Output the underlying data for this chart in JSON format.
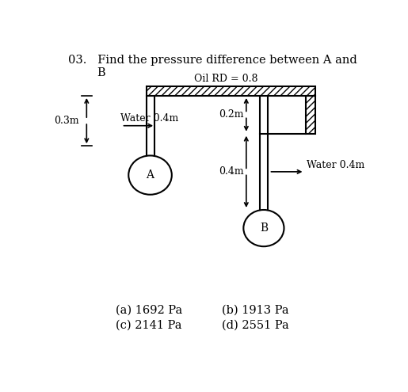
{
  "title_line1": "03.   Find the pressure difference between A and",
  "title_line2": "B",
  "oil_label": "Oil RD = 0.8",
  "water_left_label": "Water 0.4m",
  "water_right_label": "Water 0.4m",
  "dim_03m": "0.3m",
  "dim_02m": "0.2m",
  "dim_04m": "0.4m",
  "label_A": "A",
  "label_B": "B",
  "ans_a": "(a) 1692 Pa",
  "ans_b": "(b) 1913 Pa",
  "ans_c": "(c) 2141 Pa",
  "ans_d": "(d) 2551 Pa",
  "bg_color": "#ffffff",
  "line_color": "#000000"
}
